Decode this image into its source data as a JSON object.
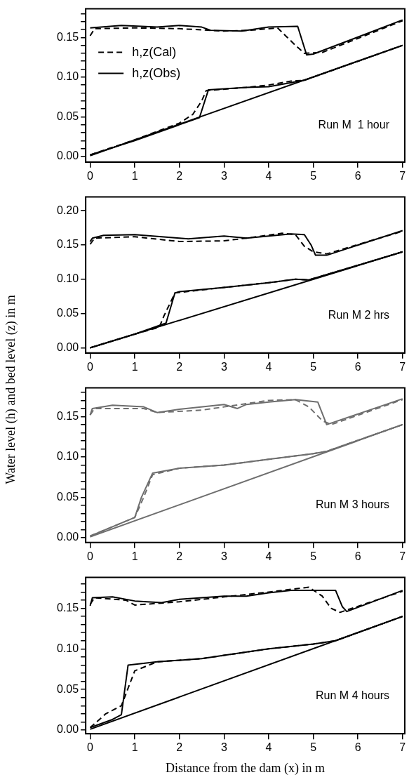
{
  "chart_data": [
    {
      "type": "line",
      "annotations": [
        "Run M  1 hour"
      ],
      "legend": "top left",
      "marker": "none",
      "grid": false,
      "xlim": [
        -0.1,
        7.05
      ],
      "xticks": [
        0,
        1,
        2,
        3,
        4,
        5,
        6,
        7
      ],
      "ylim": [
        -0.007,
        0.186
      ],
      "yticks": [
        {
          "value": 0,
          "label": "0.00"
        },
        {
          "value": 0.01,
          "label": null
        },
        {
          "value": 0.02,
          "label": null
        },
        {
          "value": 0.03,
          "label": null
        },
        {
          "value": 0.04,
          "label": null
        },
        {
          "value": 0.05,
          "label": "0.05"
        },
        {
          "value": 0.06,
          "label": null
        },
        {
          "value": 0.07,
          "label": null
        },
        {
          "value": 0.08,
          "label": null
        },
        {
          "value": 0.09,
          "label": null
        },
        {
          "value": 0.1,
          "label": "0.10"
        },
        {
          "value": 0.11,
          "label": null
        },
        {
          "value": 0.12,
          "label": null
        },
        {
          "value": 0.13,
          "label": null
        },
        {
          "value": 0.14,
          "label": null
        },
        {
          "value": 0.15,
          "label": "0.15"
        },
        {
          "value": 0.16,
          "label": null
        },
        {
          "value": 0.17,
          "label": null
        },
        {
          "value": 0.18,
          "label": null
        }
      ],
      "series": [
        {
          "name": "h,z(Cal)",
          "color": "#000000",
          "line_style": "dashed",
          "x": [
            0,
            0.1,
            1,
            2,
            3,
            3.6,
            4.2,
            4.4,
            4.6,
            4.8,
            5.2,
            7
          ],
          "values": [
            0.152,
            0.161,
            0.162,
            0.161,
            0.158,
            0.159,
            0.162,
            0.151,
            0.14,
            0.13,
            0.131,
            0.171
          ]
        },
        {
          "name": "h,z(Obs)",
          "color": "#000000",
          "line_style": "solid",
          "x": [
            0,
            0.7,
            1.5,
            2,
            2.5,
            2.7,
            3.4,
            4,
            4.65,
            4.85,
            5,
            7
          ],
          "values": [
            0.162,
            0.165,
            0.163,
            0.165,
            0.163,
            0.159,
            0.158,
            0.163,
            0.164,
            0.128,
            0.129,
            0.172
          ]
        },
        {
          "color": "#000000",
          "line_style": "dashed",
          "x": [
            0,
            1,
            2,
            2.3,
            2.5,
            2.6,
            3.5,
            4,
            4.5,
            4.8,
            7
          ],
          "values": [
            0.002,
            0.021,
            0.042,
            0.053,
            0.07,
            0.083,
            0.087,
            0.09,
            0.095,
            0.096,
            0.14
          ]
        },
        {
          "color": "#000000",
          "line_style": "solid",
          "x": [
            0,
            1,
            2,
            2.45,
            2.65,
            3.5,
            4,
            4.5,
            4.8,
            7
          ],
          "values": [
            0.002,
            0.02,
            0.04,
            0.049,
            0.084,
            0.087,
            0.088,
            0.093,
            0.096,
            0.14
          ]
        },
        {
          "color": "#000000",
          "line_style": "solid",
          "x": [
            0,
            7
          ],
          "values": [
            0.001,
            0.14
          ]
        }
      ]
    },
    {
      "type": "line",
      "annotations": [
        "Run M 2 hrs"
      ],
      "marker": "none",
      "grid": false,
      "xlim": [
        -0.1,
        7.05
      ],
      "xticks": [
        0,
        1,
        2,
        3,
        4,
        5,
        6,
        7
      ],
      "ylim": [
        -0.0075,
        0.22
      ],
      "yticks": [
        {
          "value": 0,
          "label": "0.00"
        },
        {
          "value": 0.05,
          "label": "0.05"
        },
        {
          "value": 0.1,
          "label": "0.10"
        },
        {
          "value": 0.15,
          "label": "0.15"
        },
        {
          "value": 0.2,
          "label": "0.20"
        }
      ],
      "series": [
        {
          "color": "#000000",
          "line_style": "dashed",
          "x": [
            0,
            0.1,
            1,
            2,
            3,
            3.5,
            4.3,
            4.6,
            4.8,
            5,
            5.3,
            7
          ],
          "values": [
            0.151,
            0.16,
            0.162,
            0.155,
            0.156,
            0.16,
            0.167,
            0.165,
            0.148,
            0.14,
            0.137,
            0.17
          ]
        },
        {
          "color": "#000000",
          "line_style": "solid",
          "x": [
            0,
            0.05,
            0.3,
            1,
            2,
            2.2,
            3,
            3.5,
            4.5,
            4.8,
            4.95,
            5.05,
            5.3,
            7
          ],
          "values": [
            0.155,
            0.16,
            0.164,
            0.165,
            0.16,
            0.159,
            0.163,
            0.16,
            0.166,
            0.165,
            0.15,
            0.135,
            0.135,
            0.171
          ]
        },
        {
          "color": "#000000",
          "line_style": "dashed",
          "x": [
            0,
            1,
            1.55,
            1.65,
            1.9,
            3,
            4,
            4.6,
            4.9,
            7
          ],
          "values": [
            0,
            0.02,
            0.03,
            0.046,
            0.08,
            0.088,
            0.095,
            0.1,
            0.099,
            0.14
          ]
        },
        {
          "color": "#000000",
          "line_style": "solid",
          "x": [
            0,
            1,
            1.7,
            1.9,
            2,
            3,
            4,
            4.6,
            4.9,
            7
          ],
          "values": [
            0,
            0.02,
            0.036,
            0.08,
            0.082,
            0.088,
            0.095,
            0.1,
            0.099,
            0.14
          ]
        },
        {
          "color": "#000000",
          "line_style": "solid",
          "x": [
            0,
            7
          ],
          "values": [
            0,
            0.14
          ]
        }
      ]
    },
    {
      "type": "line",
      "ylabel": "Water level (h) and bed level (z) in m",
      "annotations": [
        "Run M 3 hours"
      ],
      "marker": "none",
      "grid": false,
      "xlim": [
        -0.1,
        7.05
      ],
      "xticks": [
        0,
        1,
        2,
        3,
        4,
        5,
        6,
        7
      ],
      "ylim": [
        -0.006,
        0.1855
      ],
      "yticks": [
        {
          "value": 0,
          "label": "0.00"
        },
        {
          "value": 0.01,
          "label": null
        },
        {
          "value": 0.02,
          "label": null
        },
        {
          "value": 0.03,
          "label": null
        },
        {
          "value": 0.04,
          "label": null
        },
        {
          "value": 0.05,
          "label": "0.05"
        },
        {
          "value": 0.06,
          "label": null
        },
        {
          "value": 0.07,
          "label": null
        },
        {
          "value": 0.08,
          "label": null
        },
        {
          "value": 0.09,
          "label": null
        },
        {
          "value": 0.1,
          "label": "0.10"
        },
        {
          "value": 0.11,
          "label": null
        },
        {
          "value": 0.12,
          "label": null
        },
        {
          "value": 0.13,
          "label": null
        },
        {
          "value": 0.14,
          "label": null
        },
        {
          "value": 0.15,
          "label": "0.15"
        },
        {
          "value": 0.16,
          "label": null
        },
        {
          "value": 0.17,
          "label": null
        },
        {
          "value": 0.18,
          "label": null
        }
      ],
      "series": [
        {
          "color": "#6e6e6e",
          "line_style": "dashed",
          "x": [
            0,
            0.1,
            1.2,
            1.5,
            2.5,
            3,
            3.5,
            4,
            4.6,
            4.9,
            5.2,
            5.4,
            7
          ],
          "values": [
            0.152,
            0.16,
            0.16,
            0.155,
            0.158,
            0.162,
            0.166,
            0.17,
            0.171,
            0.162,
            0.145,
            0.14,
            0.171
          ]
        },
        {
          "color": "#6e6e6e",
          "line_style": "solid",
          "x": [
            0,
            0.05,
            0.5,
            1.2,
            1.5,
            2,
            3,
            3.3,
            3.5,
            4,
            4.6,
            5.1,
            5.3,
            7
          ],
          "values": [
            0.152,
            0.16,
            0.164,
            0.162,
            0.155,
            0.159,
            0.165,
            0.16,
            0.165,
            0.168,
            0.171,
            0.168,
            0.14,
            0.172
          ]
        },
        {
          "color": "#6e6e6e",
          "line_style": "dashed",
          "x": [
            0,
            1,
            1.2,
            1.4,
            2,
            3,
            4,
            5,
            5.3,
            7
          ],
          "values": [
            0.002,
            0.025,
            0.05,
            0.078,
            0.086,
            0.09,
            0.097,
            0.104,
            0.107,
            0.14
          ]
        },
        {
          "color": "#6e6e6e",
          "line_style": "solid",
          "x": [
            0,
            1,
            1.15,
            1.4,
            2,
            3,
            4,
            5,
            5.3,
            7
          ],
          "values": [
            0.002,
            0.025,
            0.05,
            0.08,
            0.086,
            0.09,
            0.097,
            0.104,
            0.107,
            0.14
          ]
        },
        {
          "color": "#6e6e6e",
          "line_style": "solid",
          "x": [
            0,
            7
          ],
          "values": [
            0.001,
            0.14
          ]
        }
      ]
    },
    {
      "type": "line",
      "xlabel": "Distance from the dam (x) in m",
      "annotations": [
        "Run M 4 hours"
      ],
      "marker": "none",
      "grid": false,
      "xlim": [
        -0.1,
        7.05
      ],
      "xticks": [
        0,
        1,
        2,
        3,
        4,
        5,
        6,
        7
      ],
      "ylim": [
        -0.0045,
        0.188
      ],
      "yticks": [
        {
          "value": 0,
          "label": "0.00"
        },
        {
          "value": 0.01,
          "label": null
        },
        {
          "value": 0.02,
          "label": null
        },
        {
          "value": 0.03,
          "label": null
        },
        {
          "value": 0.04,
          "label": null
        },
        {
          "value": 0.05,
          "label": "0.05"
        },
        {
          "value": 0.06,
          "label": null
        },
        {
          "value": 0.07,
          "label": null
        },
        {
          "value": 0.08,
          "label": null
        },
        {
          "value": 0.09,
          "label": null
        },
        {
          "value": 0.1,
          "label": "0.10"
        },
        {
          "value": 0.11,
          "label": null
        },
        {
          "value": 0.12,
          "label": null
        },
        {
          "value": 0.13,
          "label": null
        },
        {
          "value": 0.14,
          "label": null
        },
        {
          "value": 0.15,
          "label": "0.15"
        },
        {
          "value": 0.16,
          "label": null
        },
        {
          "value": 0.17,
          "label": null
        },
        {
          "value": 0.18,
          "label": null
        }
      ],
      "series": [
        {
          "color": "#000000",
          "line_style": "dashed",
          "x": [
            0,
            0.1,
            0.8,
            1,
            2,
            3,
            4,
            4.9,
            5.2,
            5.4,
            5.6,
            7
          ],
          "values": [
            0.155,
            0.163,
            0.16,
            0.154,
            0.158,
            0.164,
            0.17,
            0.176,
            0.165,
            0.15,
            0.145,
            0.171
          ]
        },
        {
          "color": "#000000",
          "line_style": "solid",
          "x": [
            0,
            0.05,
            0.5,
            1,
            1.6,
            2,
            3,
            3.5,
            4,
            4.5,
            5.5,
            5.65,
            5.75,
            7
          ],
          "values": [
            0.153,
            0.163,
            0.164,
            0.159,
            0.157,
            0.161,
            0.165,
            0.165,
            0.169,
            0.172,
            0.172,
            0.152,
            0.146,
            0.172
          ]
        },
        {
          "color": "#000000",
          "line_style": "dashed",
          "x": [
            0,
            0.35,
            0.7,
            1,
            1.5,
            2.5,
            3,
            4,
            5,
            5.5,
            7
          ],
          "values": [
            0.003,
            0.02,
            0.03,
            0.073,
            0.084,
            0.088,
            0.092,
            0.1,
            0.106,
            0.11,
            0.14
          ]
        },
        {
          "color": "#000000",
          "line_style": "solid",
          "x": [
            0,
            0.5,
            0.7,
            0.85,
            1.5,
            2.5,
            3,
            4,
            5,
            5.5,
            7
          ],
          "values": [
            0.003,
            0.013,
            0.019,
            0.08,
            0.084,
            0.088,
            0.092,
            0.1,
            0.106,
            0.11,
            0.14
          ]
        },
        {
          "color": "#000000",
          "line_style": "solid",
          "x": [
            0,
            7
          ],
          "values": [
            0.001,
            0.14
          ]
        }
      ]
    }
  ]
}
